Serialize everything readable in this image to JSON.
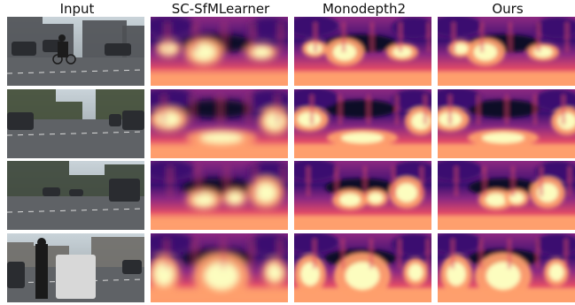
{
  "headers": {
    "input": "Input",
    "sc_sfm": "SC-SfMLearner",
    "monodepth2": "Monodepth2",
    "ours": "Ours"
  },
  "grid": {
    "columns": [
      "input",
      "sc_sfm",
      "monodepth2",
      "ours"
    ],
    "rows": 4
  },
  "colors": {
    "depth_far": "#0d0826",
    "depth_mid_dark": "#3b0f70",
    "depth_mid": "#8c2981",
    "depth_warm": "#de4968",
    "depth_orange": "#fe9f6d",
    "depth_near": "#fcfdbf",
    "road": "#5f6266",
    "sky": "#b9c4cc"
  }
}
